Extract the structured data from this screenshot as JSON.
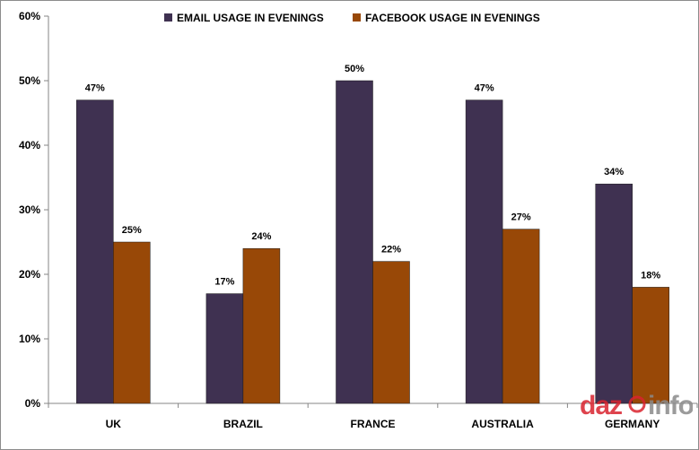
{
  "chart_data": {
    "type": "bar",
    "categories": [
      "UK",
      "BRAZIL",
      "FRANCE",
      "AUSTRALIA",
      "GERMANY"
    ],
    "series": [
      {
        "name": "EMAIL USAGE IN EVENINGS",
        "values": [
          47,
          17,
          50,
          47,
          34
        ],
        "labels": [
          "47%",
          "17%",
          "50%",
          "47%",
          "34%"
        ],
        "color": "#3f3151"
      },
      {
        "name": "FACEBOOK USAGE IN EVENINGS",
        "values": [
          25,
          24,
          22,
          27,
          18
        ],
        "labels": [
          "25%",
          "24%",
          "22%",
          "27%",
          "18%"
        ],
        "color": "#984807"
      }
    ],
    "ylim": [
      0,
      60
    ],
    "yticks": [
      0,
      10,
      20,
      30,
      40,
      50,
      60
    ],
    "ytick_labels": [
      "0%",
      "10%",
      "20%",
      "30%",
      "40%",
      "50%",
      "60%"
    ],
    "grid": false,
    "legend_position": "top-center",
    "xlabel": "",
    "ylabel": ""
  },
  "watermark": {
    "text_left": "daz",
    "text_right": "info",
    "accent": "#d9232e",
    "gray": "#8a8a8a"
  }
}
